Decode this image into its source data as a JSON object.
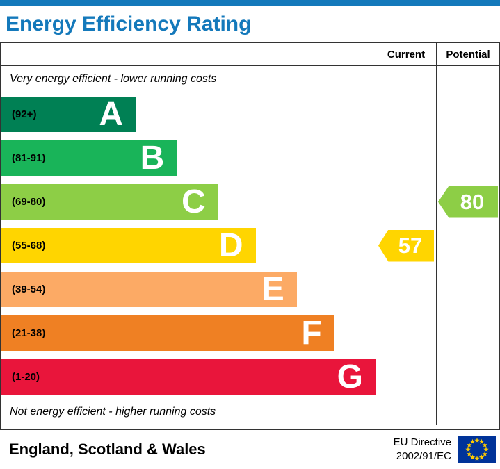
{
  "title": "Energy Efficiency Rating",
  "columns": {
    "current": "Current",
    "potential": "Potential"
  },
  "notes": {
    "top": "Very energy efficient - lower running costs",
    "bottom": "Not energy efficient - higher running costs"
  },
  "bands": [
    {
      "letter": "A",
      "range": "(92+)",
      "color": "#008054",
      "width_pct": 36
    },
    {
      "letter": "B",
      "range": "(81-91)",
      "color": "#19b459",
      "width_pct": 47
    },
    {
      "letter": "C",
      "range": "(69-80)",
      "color": "#8dce46",
      "width_pct": 58
    },
    {
      "letter": "D",
      "range": "(55-68)",
      "color": "#ffd500",
      "width_pct": 68
    },
    {
      "letter": "E",
      "range": "(39-54)",
      "color": "#fcaa65",
      "width_pct": 79
    },
    {
      "letter": "F",
      "range": "(21-38)",
      "color": "#ef8023",
      "width_pct": 89
    },
    {
      "letter": "G",
      "range": "(1-20)",
      "color": "#e9153b",
      "width_pct": 100
    }
  ],
  "current": {
    "value": "57",
    "color": "#ffd500",
    "band": "D"
  },
  "potential": {
    "value": "80",
    "color": "#8dce46",
    "band": "C"
  },
  "footer": {
    "region": "England, Scotland & Wales",
    "directive_line1": "EU Directive",
    "directive_line2": "2002/91/EC"
  },
  "eu_flag": {
    "bg": "#003399",
    "star": "#ffcc00"
  },
  "colors": {
    "title_blue": "#1479bb",
    "border": "#333333"
  },
  "chart_data": {
    "type": "bar",
    "title": "Energy Efficiency Rating",
    "categories": [
      "A (92+)",
      "B (81-91)",
      "C (69-80)",
      "D (55-68)",
      "E (39-54)",
      "F (21-38)",
      "G (1-20)"
    ],
    "values": [
      36,
      47,
      58,
      68,
      79,
      89,
      100
    ],
    "series": [
      {
        "name": "Current",
        "value": 57,
        "band": "D"
      },
      {
        "name": "Potential",
        "value": 80,
        "band": "C"
      }
    ],
    "xlabel": "",
    "ylabel": "",
    "legend_position": "top-right-columns",
    "annotations": [
      "Very energy efficient - lower running costs",
      "Not energy efficient - higher running costs",
      "England, Scotland & Wales",
      "EU Directive 2002/91/EC"
    ]
  }
}
